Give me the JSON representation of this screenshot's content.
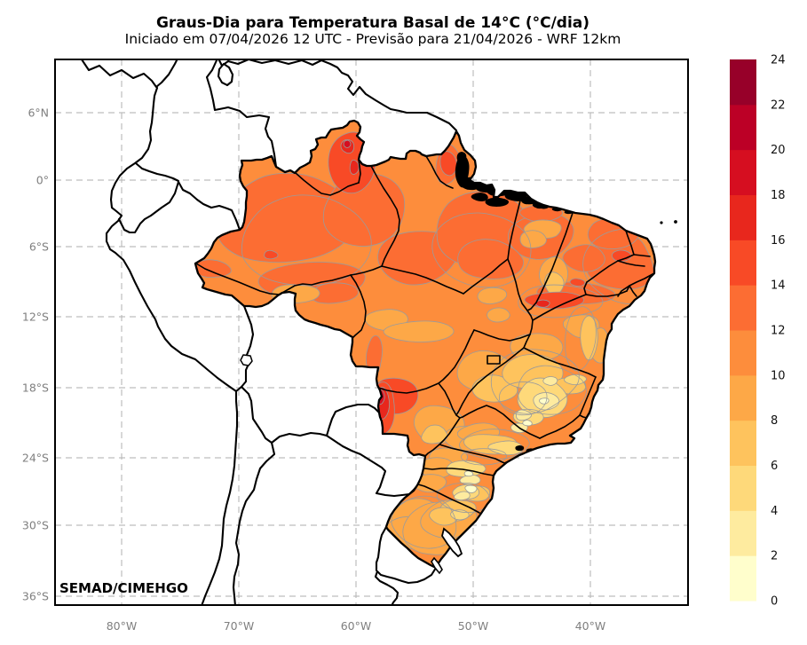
{
  "title": "Graus-Dia para Temperatura Basal de 14°C (°C/dia)",
  "subtitle": "Iniciado em 07/04/2026 12 UTC - Previsão para 21/04/2026 - WRF 12km",
  "watermark": "SEMAD/CIMEHGO",
  "axes": {
    "lat_tick_labels": [
      "6°N",
      "0°",
      "6°S",
      "12°S",
      "18°S",
      "24°S",
      "30°S",
      "36°S"
    ],
    "lon_tick_labels": [
      "80°W",
      "70°W",
      "60°W",
      "50°W",
      "40°W"
    ]
  },
  "colorbar": {
    "tick_labels": [
      "0",
      "2",
      "4",
      "6",
      "8",
      "10",
      "12",
      "14",
      "16",
      "18",
      "20",
      "22",
      "24"
    ],
    "levels": [
      {
        "range": "0-2",
        "color": "#FFFECC"
      },
      {
        "range": "2-4",
        "color": "#FEEB9F"
      },
      {
        "range": "4-6",
        "color": "#FED97A"
      },
      {
        "range": "6-8",
        "color": "#FEC35D"
      },
      {
        "range": "8-10",
        "color": "#FDA847"
      },
      {
        "range": "10-12",
        "color": "#FD8D3C"
      },
      {
        "range": "12-14",
        "color": "#FC6D33"
      },
      {
        "range": "14-16",
        "color": "#F84A26"
      },
      {
        "range": "16-18",
        "color": "#E8271D"
      },
      {
        "range": "18-20",
        "color": "#D60E20"
      },
      {
        "range": "20-22",
        "color": "#BC0026"
      },
      {
        "range": "22-24",
        "color": "#970029"
      }
    ]
  },
  "map_style": {
    "border_color": "#000000",
    "grid_color": "#bdbdbd",
    "tick_color": "#7f7f7f",
    "contour_color": "#9b9b9b",
    "ocean_land_background": "#ffffff"
  }
}
